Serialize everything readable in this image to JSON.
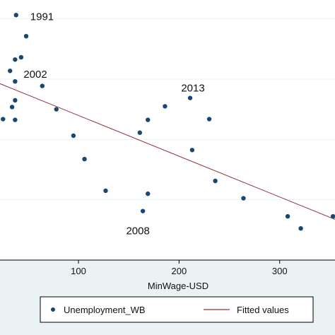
{
  "chart_data": {
    "type": "scatter",
    "xlabel": "MinWage-USD",
    "ylabel": "",
    "x_ticks": [
      100,
      200,
      300
    ],
    "xlim": [
      22,
      355
    ],
    "y_gridlines": [
      8,
      16,
      24,
      32
    ],
    "ylim": [
      0,
      34.5
    ],
    "grid": true,
    "series": [
      {
        "name": "Unemployment_WB",
        "color": "#1a476f",
        "points": [
          {
            "x": 38,
            "y": 32.5
          },
          {
            "x": 48,
            "y": 29.7
          },
          {
            "x": 37,
            "y": 26.6
          },
          {
            "x": 43,
            "y": 26.9
          },
          {
            "x": 32,
            "y": 25.1
          },
          {
            "x": 37,
            "y": 23.7
          },
          {
            "x": 37,
            "y": 21.2
          },
          {
            "x": 34,
            "y": 20.3
          },
          {
            "x": 37,
            "y": 18.6
          },
          {
            "x": 25,
            "y": 18.7
          },
          {
            "x": 64,
            "y": 23.1
          },
          {
            "x": 78,
            "y": 20.0
          },
          {
            "x": 95,
            "y": 16.5
          },
          {
            "x": 106,
            "y": 13.4
          },
          {
            "x": 127,
            "y": 9.2
          },
          {
            "x": 161,
            "y": 16.9
          },
          {
            "x": 164,
            "y": 6.5
          },
          {
            "x": 169,
            "y": 18.6
          },
          {
            "x": 169,
            "y": 8.8
          },
          {
            "x": 186,
            "y": 20.4
          },
          {
            "x": 211,
            "y": 21.5
          },
          {
            "x": 213,
            "y": 14.6
          },
          {
            "x": 230,
            "y": 18.7
          },
          {
            "x": 236,
            "y": 10.5
          },
          {
            "x": 264,
            "y": 8.2
          },
          {
            "x": 308,
            "y": 5.8
          },
          {
            "x": 321,
            "y": 4.2
          },
          {
            "x": 353,
            "y": 5.8
          }
        ]
      },
      {
        "name": "Fitted values",
        "color": "#90353b",
        "type": "line",
        "x": [
          22,
          355
        ],
        "y": [
          23.4,
          5.4
        ]
      }
    ],
    "annotations": [
      {
        "text": "1991",
        "x": 38,
        "y": 32.5
      },
      {
        "text": "2002",
        "x": 37,
        "y": 23.7
      },
      {
        "text": "2013",
        "x": 211,
        "y": 21.5
      },
      {
        "text": "2008",
        "x": 164,
        "y": 6.5
      }
    ],
    "legend": {
      "placement": "bottom",
      "items": [
        {
          "label": "Unemployment_WB",
          "marker": "point"
        },
        {
          "label": "Fitted values",
          "marker": "line"
        }
      ]
    }
  }
}
